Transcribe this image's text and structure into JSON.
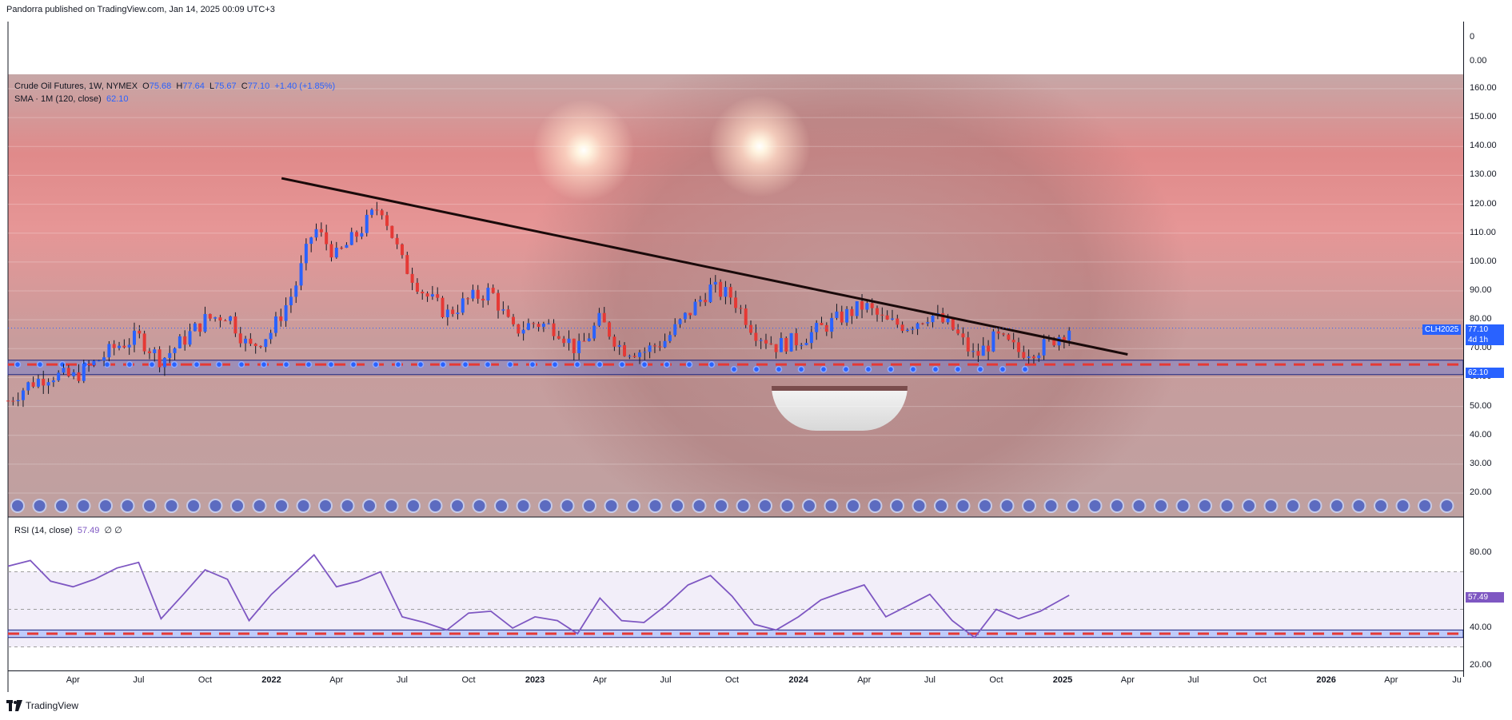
{
  "header": "Pandorra published on TradingView.com, Jan 14, 2025 00:09 UTC+3",
  "footer_brand": "TradingView",
  "price_pane": {
    "symbol_label": "Crude Oil Futures, 1W, NYMEX",
    "ohlc": {
      "o_label": "O",
      "o": "75.68",
      "h_label": "H",
      "h": "77.64",
      "l_label": "L",
      "l": "75.67",
      "c_label": "C",
      "c": "77.10",
      "change": "+1.40 (+1.85%)"
    },
    "sma_label": "SMA · 1M (120, close)",
    "sma_value": "62.10",
    "ticks_top": [
      "0",
      "0.00"
    ],
    "ticks": [
      "160.00",
      "150.00",
      "140.00",
      "130.00",
      "120.00",
      "110.00",
      "100.00",
      "90.00",
      "80.00",
      "70.00",
      "60.00",
      "50.00",
      "40.00",
      "30.00",
      "20.00"
    ],
    "tags": {
      "symbol": "CLH2025",
      "price": "77.10",
      "countdown": "4d 1h",
      "sma": "62.10"
    }
  },
  "rsi_pane": {
    "label": "RSI (14, close)",
    "value": "57.49",
    "extra": "∅ ∅",
    "ticks": [
      "80.00",
      "40.00",
      "20.00"
    ],
    "tag": "57.49"
  },
  "colors": {
    "up": "#2962ff",
    "down": "#e53935",
    "rsi_line": "#7e57c2",
    "sma_dash": "#e53935",
    "trendline": "#1a0a0a"
  },
  "chart_data": {
    "type": "candlestick",
    "title": "Crude Oil Futures, 1W, NYMEX",
    "ylim": [
      15,
      165
    ],
    "x_ticks": [
      "Apr",
      "Jul",
      "Oct",
      "2022",
      "Apr",
      "Jul",
      "Oct",
      "2023",
      "Apr",
      "Jul",
      "Oct",
      "2024",
      "Apr",
      "Jul",
      "Oct",
      "2025",
      "Apr",
      "Jul",
      "Oct",
      "2026",
      "Apr",
      "Ju"
    ],
    "x_tick_dates": [
      "2021-04",
      "2021-07",
      "2021-10",
      "2022-01",
      "2022-04",
      "2022-07",
      "2022-10",
      "2023-01",
      "2023-04",
      "2023-07",
      "2023-10",
      "2024-01",
      "2024-04",
      "2024-07",
      "2024-10",
      "2025-01",
      "2025-04",
      "2025-07",
      "2025-10",
      "2026-01",
      "2026-04",
      "2026-07"
    ],
    "weekly_close_path": [
      [
        "2021-01-01",
        52
      ],
      [
        "2021-02-01",
        58
      ],
      [
        "2021-03-01",
        61
      ],
      [
        "2021-04-01",
        60
      ],
      [
        "2021-05-01",
        65
      ],
      [
        "2021-06-01",
        71
      ],
      [
        "2021-07-01",
        74
      ],
      [
        "2021-08-01",
        66
      ],
      [
        "2021-09-01",
        73
      ],
      [
        "2021-10-01",
        80
      ],
      [
        "2021-11-01",
        82
      ],
      [
        "2021-12-01",
        70
      ],
      [
        "2022-01-01",
        76
      ],
      [
        "2022-02-01",
        90
      ],
      [
        "2022-03-01",
        112
      ],
      [
        "2022-04-01",
        102
      ],
      [
        "2022-05-01",
        110
      ],
      [
        "2022-06-01",
        120
      ],
      [
        "2022-07-01",
        100
      ],
      [
        "2022-08-01",
        89
      ],
      [
        "2022-09-01",
        82
      ],
      [
        "2022-10-01",
        87
      ],
      [
        "2022-11-01",
        90
      ],
      [
        "2022-12-01",
        76
      ],
      [
        "2023-01-01",
        79
      ],
      [
        "2023-02-01",
        77
      ],
      [
        "2023-03-01",
        69
      ],
      [
        "2023-04-01",
        80
      ],
      [
        "2023-05-01",
        70
      ],
      [
        "2023-06-01",
        69
      ],
      [
        "2023-07-01",
        73
      ],
      [
        "2023-08-01",
        82
      ],
      [
        "2023-09-01",
        91
      ],
      [
        "2023-10-01",
        88
      ],
      [
        "2023-11-01",
        76
      ],
      [
        "2023-12-01",
        71
      ],
      [
        "2024-01-01",
        73
      ],
      [
        "2024-02-01",
        77
      ],
      [
        "2024-03-01",
        81
      ],
      [
        "2024-04-01",
        85
      ],
      [
        "2024-05-01",
        79
      ],
      [
        "2024-06-01",
        78
      ],
      [
        "2024-07-01",
        82
      ],
      [
        "2024-08-01",
        77
      ],
      [
        "2024-09-01",
        67
      ],
      [
        "2024-10-01",
        74
      ],
      [
        "2024-11-01",
        69
      ],
      [
        "2024-12-01",
        70
      ],
      [
        "2025-01-10",
        77.1
      ]
    ],
    "sma_120": 62.1,
    "trendline": {
      "start": [
        "2022-01-15",
        129
      ],
      "end": [
        "2025-04-01",
        68
      ]
    },
    "support_band": [
      61,
      66
    ],
    "rsi": {
      "ylim": [
        15,
        90
      ],
      "levels": [
        70,
        50,
        30
      ],
      "last": 57.49,
      "path": [
        [
          "2021-01-01",
          73
        ],
        [
          "2021-02-01",
          76
        ],
        [
          "2021-03-01",
          65
        ],
        [
          "2021-04-01",
          62
        ],
        [
          "2021-05-01",
          66
        ],
        [
          "2021-06-01",
          72
        ],
        [
          "2021-07-01",
          75
        ],
        [
          "2021-08-01",
          45
        ],
        [
          "2021-09-01",
          58
        ],
        [
          "2021-10-01",
          71
        ],
        [
          "2021-11-01",
          66
        ],
        [
          "2021-12-01",
          44
        ],
        [
          "2022-01-01",
          58
        ],
        [
          "2022-02-01",
          69
        ],
        [
          "2022-03-01",
          79
        ],
        [
          "2022-04-01",
          62
        ],
        [
          "2022-05-01",
          65
        ],
        [
          "2022-06-01",
          70
        ],
        [
          "2022-07-01",
          46
        ],
        [
          "2022-08-01",
          43
        ],
        [
          "2022-09-01",
          39
        ],
        [
          "2022-10-01",
          48
        ],
        [
          "2022-11-01",
          49
        ],
        [
          "2022-12-01",
          40
        ],
        [
          "2023-01-01",
          46
        ],
        [
          "2023-02-01",
          44
        ],
        [
          "2023-03-01",
          37
        ],
        [
          "2023-04-01",
          56
        ],
        [
          "2023-05-01",
          44
        ],
        [
          "2023-06-01",
          43
        ],
        [
          "2023-07-01",
          52
        ],
        [
          "2023-08-01",
          63
        ],
        [
          "2023-09-01",
          68
        ],
        [
          "2023-10-01",
          57
        ],
        [
          "2023-11-01",
          42
        ],
        [
          "2023-12-01",
          39
        ],
        [
          "2024-01-01",
          46
        ],
        [
          "2024-02-01",
          55
        ],
        [
          "2024-03-01",
          59
        ],
        [
          "2024-04-01",
          63
        ],
        [
          "2024-05-01",
          46
        ],
        [
          "2024-06-01",
          52
        ],
        [
          "2024-07-01",
          58
        ],
        [
          "2024-08-01",
          44
        ],
        [
          "2024-09-01",
          35
        ],
        [
          "2024-10-01",
          50
        ],
        [
          "2024-11-01",
          45
        ],
        [
          "2024-12-01",
          49
        ],
        [
          "2025-01-10",
          57.49
        ]
      ]
    }
  }
}
